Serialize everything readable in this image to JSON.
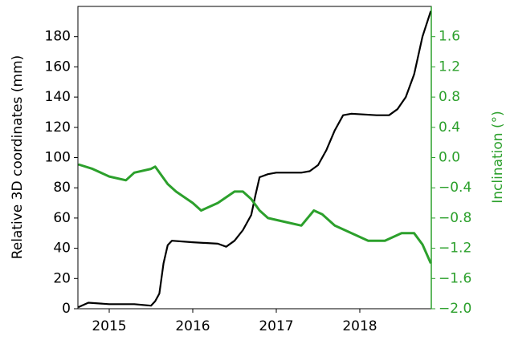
{
  "chart_data": {
    "type": "line",
    "y_label": "Relative 3D coordinates (mm)",
    "y2_label": "Inclination (°)",
    "xlim": [
      2014.625,
      2018.856
    ],
    "xticks": [
      2015,
      2016,
      2017,
      2018
    ],
    "ylim": [
      0,
      200
    ],
    "yticks": [
      0,
      20,
      40,
      60,
      80,
      100,
      120,
      140,
      160,
      180
    ],
    "y2lim": [
      -2.0,
      2.0
    ],
    "y2ticks": [
      {
        "value": -2.0,
        "label": "−2.0"
      },
      {
        "value": -1.6,
        "label": "−1.6"
      },
      {
        "value": -1.2,
        "label": "−1.2"
      },
      {
        "value": -0.8,
        "label": "−0.8"
      },
      {
        "value": -0.4,
        "label": "−0.4"
      },
      {
        "value": 0,
        "label": "0.0"
      },
      {
        "value": 0.4,
        "label": "0.4"
      },
      {
        "value": 0.8,
        "label": "0.8"
      },
      {
        "value": 1.2,
        "label": "1.2"
      },
      {
        "value": 1.6,
        "label": "1.6"
      }
    ],
    "y2_color": "#2ca02c",
    "series": [
      {
        "color": "#000000",
        "axis": "y",
        "x": [
          2014.63,
          2014.75,
          2015.0,
          2015.3,
          2015.5,
          2015.55,
          2015.6,
          2015.65,
          2015.7,
          2015.75,
          2016.0,
          2016.3,
          2016.4,
          2016.5,
          2016.6,
          2016.7,
          2016.75,
          2016.8,
          2016.9,
          2017.0,
          2017.3,
          2017.4,
          2017.5,
          2017.6,
          2017.7,
          2017.8,
          2017.9,
          2018.2,
          2018.35,
          2018.45,
          2018.55,
          2018.65,
          2018.75,
          2018.85
        ],
        "values": [
          1,
          4,
          3,
          3,
          2,
          5,
          10,
          30,
          42,
          45,
          44,
          43,
          41,
          45,
          52,
          62,
          75,
          87,
          89,
          90,
          90,
          91,
          95,
          105,
          118,
          128,
          129,
          128,
          128,
          132,
          140,
          155,
          180,
          197
        ]
      },
      {
        "color": "#2ca02c",
        "axis": "y2",
        "x": [
          2014.63,
          2014.8,
          2015.0,
          2015.2,
          2015.3,
          2015.5,
          2015.55,
          2015.7,
          2015.8,
          2016.0,
          2016.1,
          2016.3,
          2016.5,
          2016.6,
          2016.7,
          2016.8,
          2016.9,
          2017.1,
          2017.3,
          2017.45,
          2017.55,
          2017.7,
          2017.9,
          2018.1,
          2018.3,
          2018.5,
          2018.65,
          2018.75,
          2018.85
        ],
        "values": [
          -0.09,
          -0.15,
          -0.25,
          -0.3,
          -0.2,
          -0.15,
          -0.12,
          -0.35,
          -0.45,
          -0.6,
          -0.7,
          -0.6,
          -0.45,
          -0.45,
          -0.55,
          -0.7,
          -0.8,
          -0.85,
          -0.9,
          -0.7,
          -0.75,
          -0.9,
          -1.0,
          -1.1,
          -1.1,
          -1.0,
          -1.0,
          -1.15,
          -1.4
        ]
      }
    ]
  }
}
